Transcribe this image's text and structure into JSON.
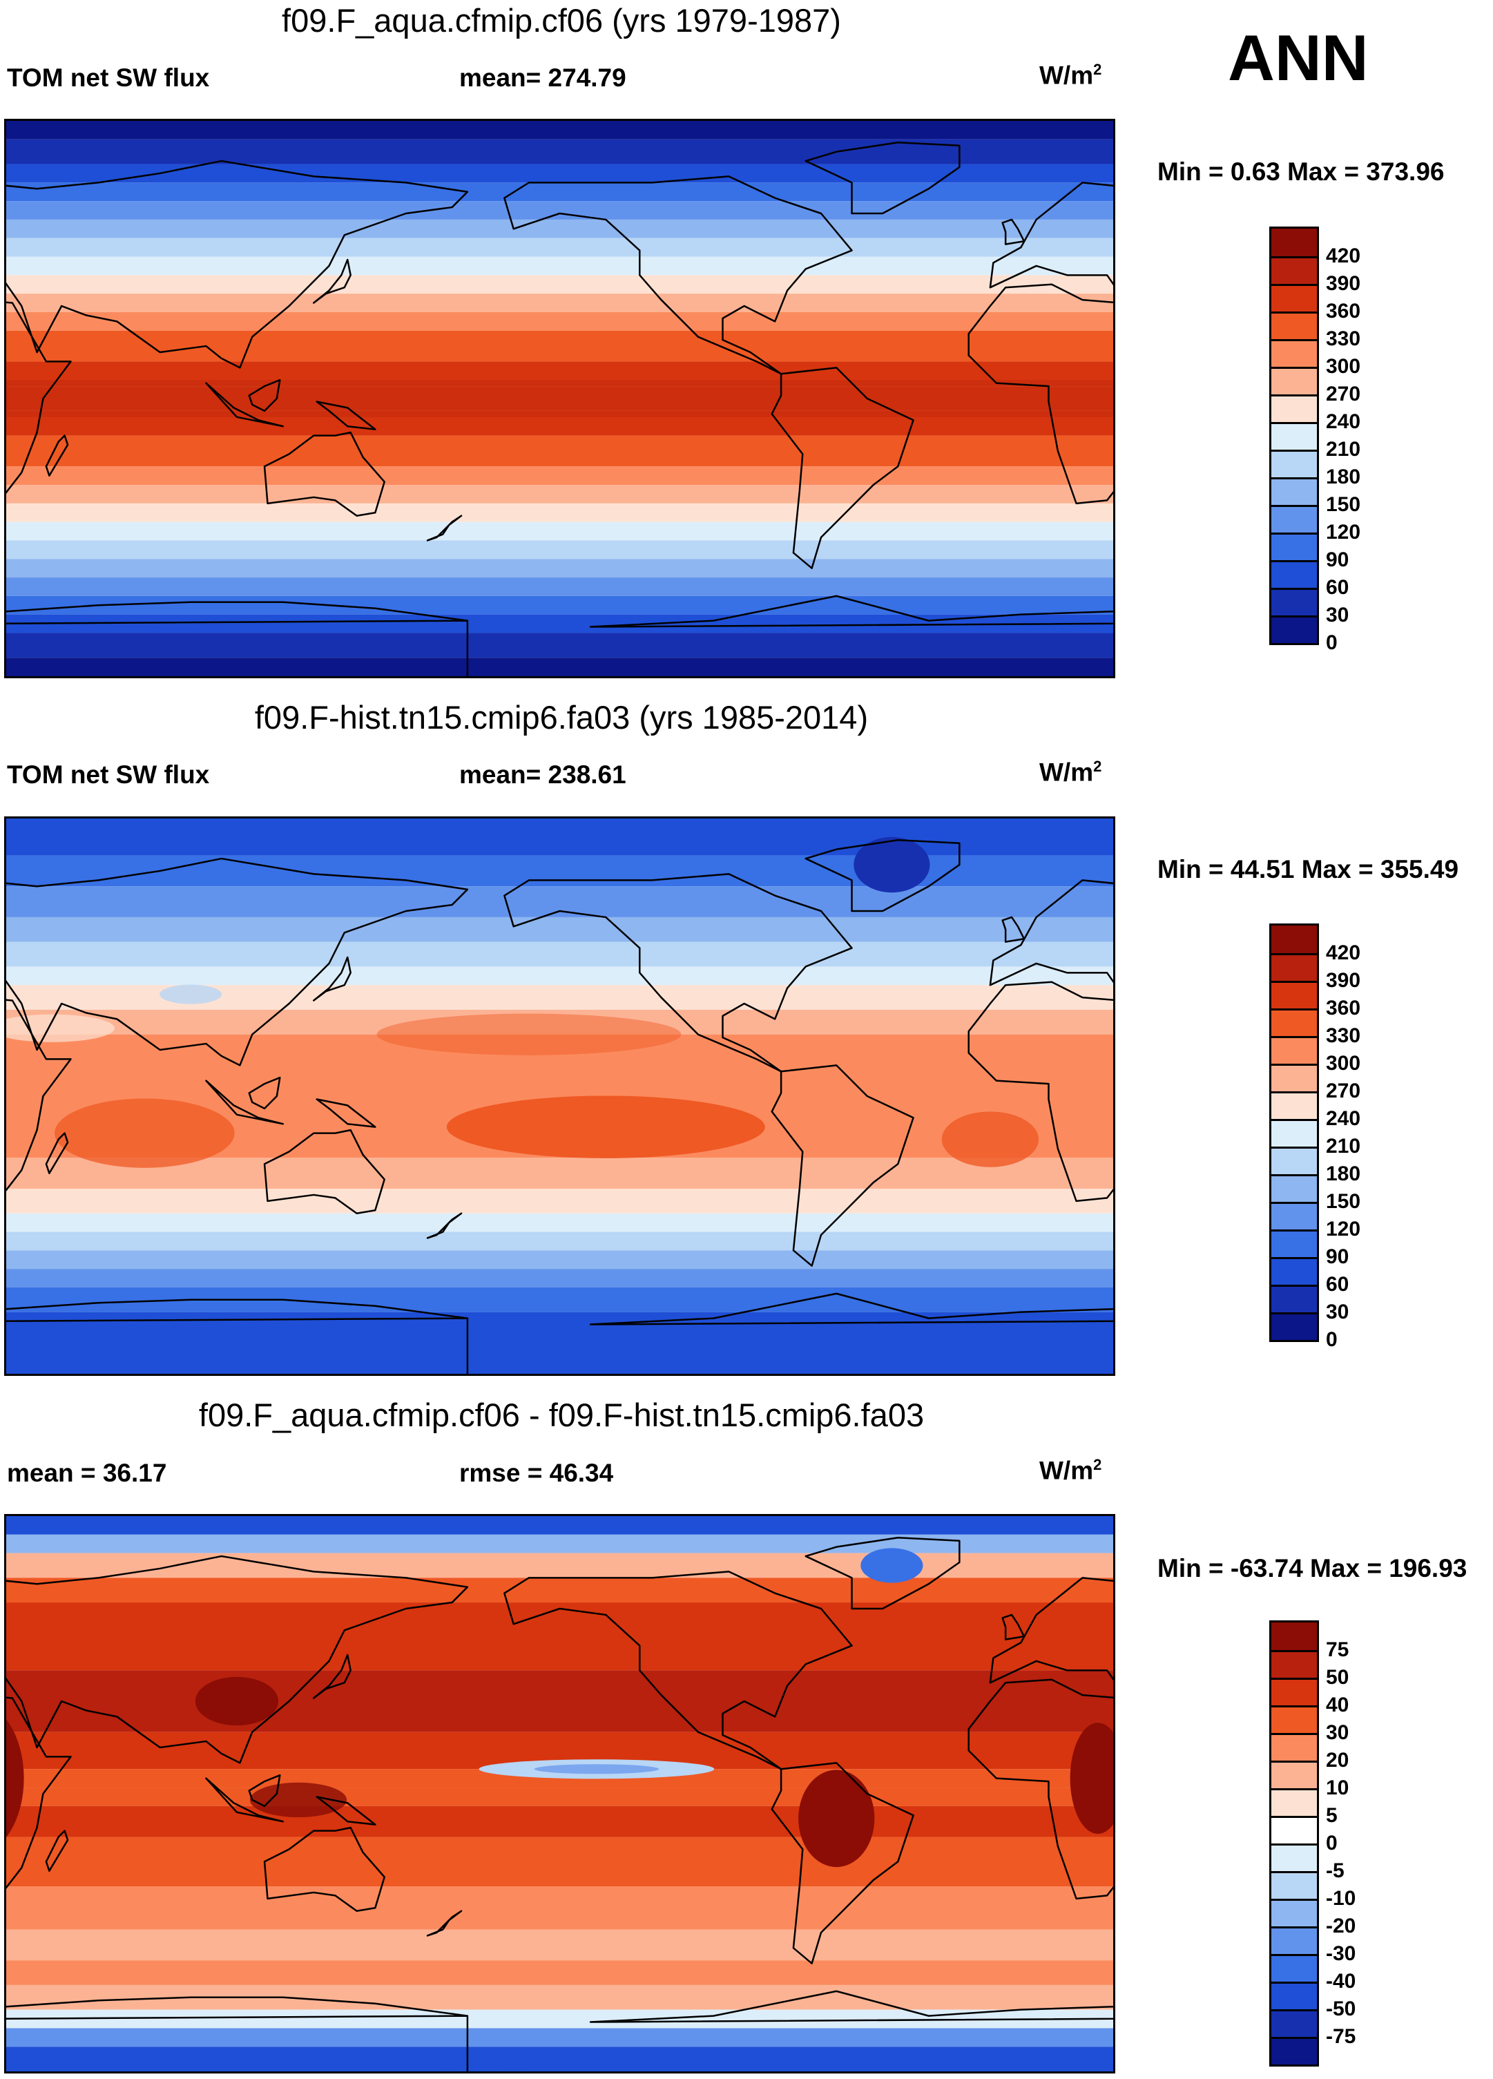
{
  "season": "ANN",
  "panels": [
    {
      "title": "f09.F_aqua.cfmip.cf06 (yrs 1979-1987)",
      "left_label": "TOM net SW flux",
      "mid_label": "mean= 274.79",
      "units": "W/m",
      "units_sup": "2",
      "minmax": "Min =   0.63 Max = 373.96",
      "colorbar_labels": [
        "420",
        "390",
        "360",
        "330",
        "300",
        "270",
        "240",
        "210",
        "180",
        "150",
        "120",
        "90",
        "60",
        "30",
        "0"
      ],
      "colors": [
        "#8b0d05",
        "#b7210e",
        "#d7350f",
        "#ef5924",
        "#fb8b5e",
        "#fcb394",
        "#fde2d3",
        "#dceefa",
        "#b8d6f5",
        "#8eb6f0",
        "#6293ec",
        "#3870e5",
        "#1f4fd6",
        "#1730b0",
        "#0b1689"
      ],
      "field": "zonal_insolation"
    },
    {
      "title": "f09.F-hist.tn15.cmip6.fa03 (yrs 1985-2014)",
      "left_label": "TOM net SW flux",
      "mid_label": "mean= 238.61",
      "units": "W/m",
      "units_sup": "2",
      "minmax": "Min =  44.51 Max = 355.49",
      "colorbar_labels": [
        "420",
        "390",
        "360",
        "330",
        "300",
        "270",
        "240",
        "210",
        "180",
        "150",
        "120",
        "90",
        "60",
        "30",
        "0"
      ],
      "colors": [
        "#8b0d05",
        "#b7210e",
        "#d7350f",
        "#ef5924",
        "#fb8b5e",
        "#fcb394",
        "#fde2d3",
        "#dceefa",
        "#b8d6f5",
        "#8eb6f0",
        "#6293ec",
        "#3870e5",
        "#1f4fd6",
        "#1730b0",
        "#0b1689"
      ],
      "field": "realistic_sw"
    },
    {
      "title": "f09.F_aqua.cfmip.cf06 - f09.F-hist.tn15.cmip6.fa03",
      "left_label": "mean =  36.17",
      "mid_label": "rmse =  46.34",
      "units": "W/m",
      "units_sup": "2",
      "minmax": "Min = -63.74 Max = 196.93",
      "colorbar_labels": [
        "75",
        "50",
        "40",
        "30",
        "20",
        "10",
        "5",
        "0",
        "-5",
        "-10",
        "-20",
        "-30",
        "-40",
        "-50",
        "-75"
      ],
      "colors": [
        "#8b0d05",
        "#b7210e",
        "#d7350f",
        "#ef5924",
        "#fb8b5e",
        "#fcb394",
        "#fde2d3",
        "#ffffff",
        "#dceefa",
        "#b8d6f5",
        "#8eb6f0",
        "#6293ec",
        "#3870e5",
        "#1f4fd6",
        "#1730b0",
        "#0b1689"
      ],
      "field": "difference"
    }
  ]
}
